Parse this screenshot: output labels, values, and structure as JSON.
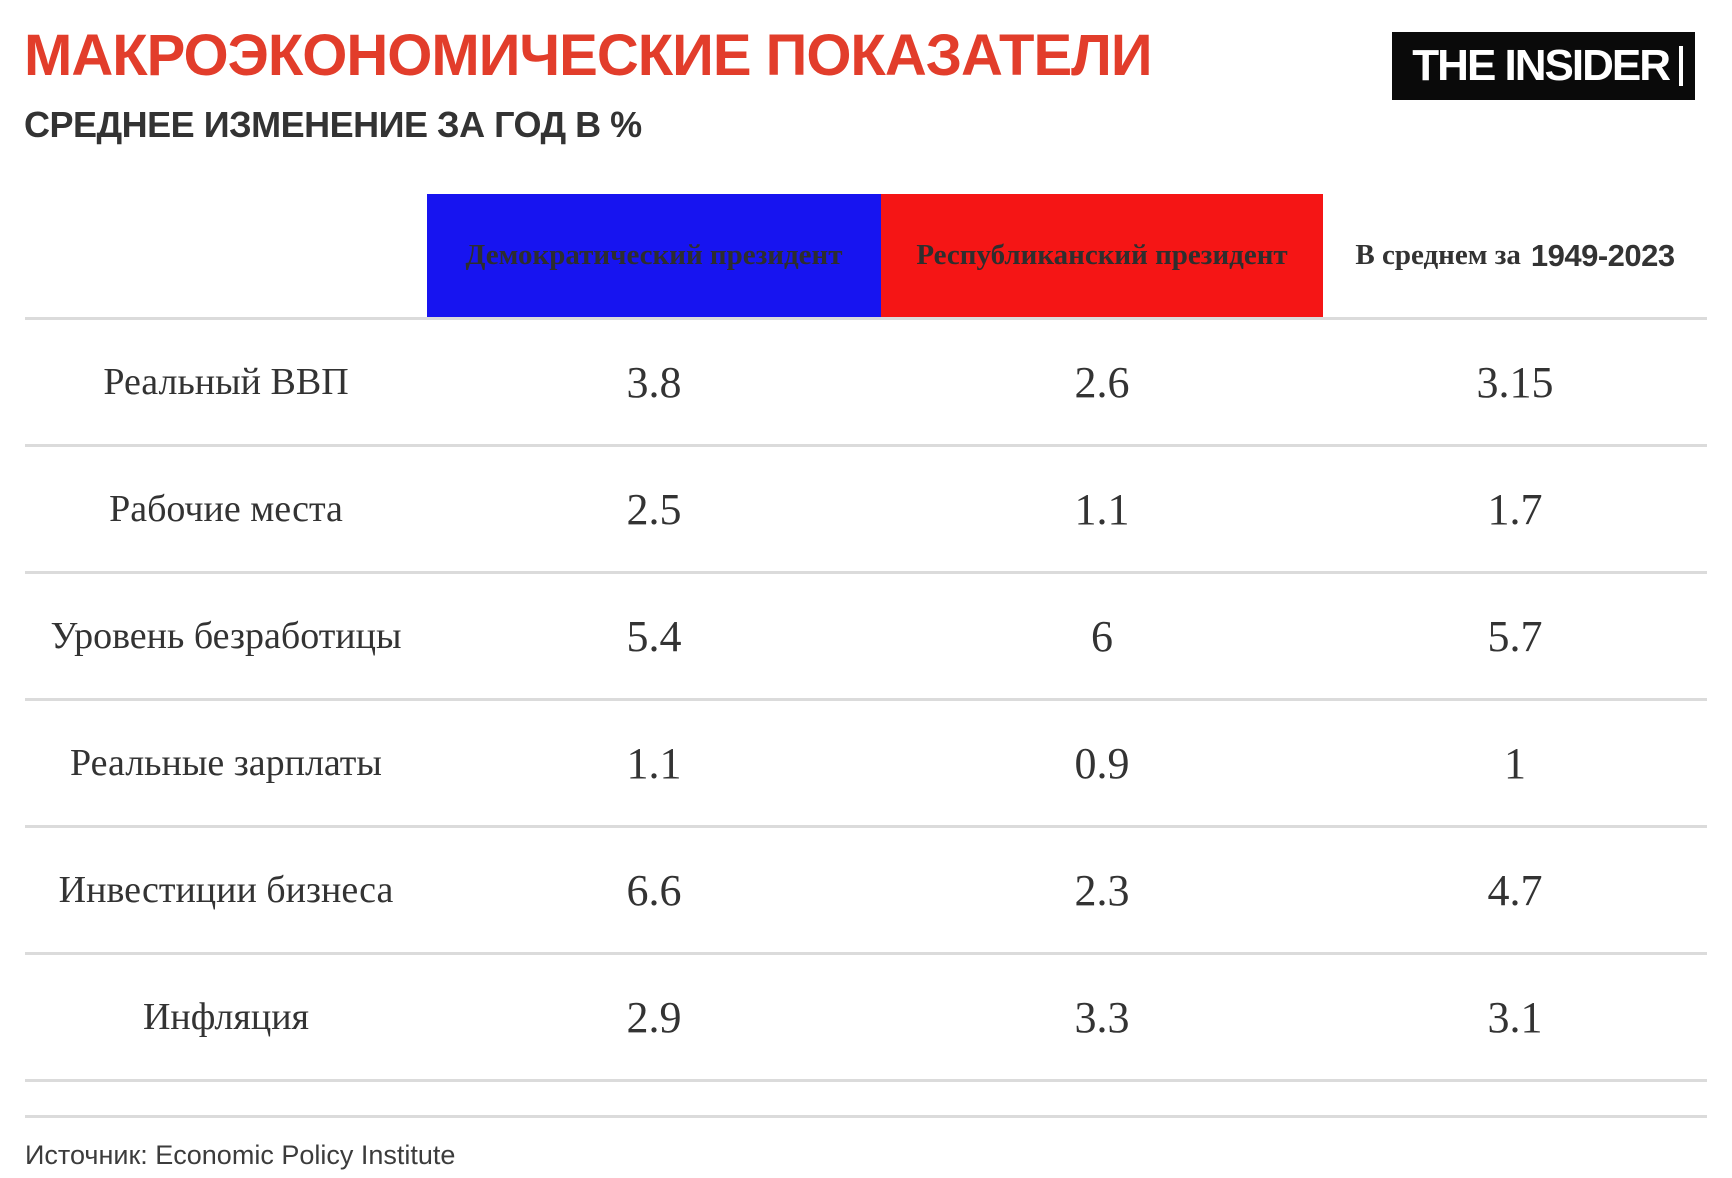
{
  "header": {
    "title": "МАКРОЭКОНОМИЧЕСКИЕ ПОКАЗАТЕЛИ",
    "subtitle": "СРЕДНЕЕ ИЗМЕНЕНИЕ ЗА ГОД В %",
    "logo_text": "THE INSIDER"
  },
  "colors": {
    "title": "#E23D2B",
    "democrat": "#1714F0",
    "republican": "#F51515",
    "divider": "#DBDBDB",
    "logo-bg": "#0A0A0A",
    "logo-text": "#FFFFFF",
    "body-text": "#333333",
    "source-text": "#3C3C3C"
  },
  "table": {
    "columns": {
      "democrat": "Демократический президент",
      "republican": "Республиканский президент",
      "average_prefix": "В среднем за",
      "average_years": "1949-2023"
    },
    "rows": [
      {
        "label": "Реальный ВВП",
        "democrat": "3.8",
        "republican": "2.6",
        "average": "3.15"
      },
      {
        "label": "Рабочие места",
        "democrat": "2.5",
        "republican": "1.1",
        "average": "1.7"
      },
      {
        "label": "Уровень безработицы",
        "democrat": "5.4",
        "republican": "6",
        "average": "5.7"
      },
      {
        "label": "Реальные зарплаты",
        "democrat": "1.1",
        "republican": "0.9",
        "average": "1"
      },
      {
        "label": "Инвестиции бизнеса",
        "democrat": "6.6",
        "republican": "2.3",
        "average": "4.7"
      },
      {
        "label": "Инфляция",
        "democrat": "2.9",
        "republican": "3.3",
        "average": "3.1"
      }
    ]
  },
  "footer": {
    "source": "Источник: Economic Policy Institute"
  },
  "chart_data": {
    "type": "table",
    "title": "МАКРОЭКОНОМИЧЕСКИЕ ПОКАЗАТЕЛИ",
    "subtitle": "СРЕДНЕЕ ИЗМЕНЕНИЕ ЗА ГОД В %",
    "units": "% average change per year",
    "columns": [
      "",
      "Демократический президент",
      "Республиканский президент",
      "В среднем за 1949-2023"
    ],
    "rows": [
      {
        "indicator": "Реальный ВВП",
        "democrat": 3.8,
        "republican": 2.6,
        "average_1949_2023": 3.15
      },
      {
        "indicator": "Рабочие места",
        "democrat": 2.5,
        "republican": 1.1,
        "average_1949_2023": 1.7
      },
      {
        "indicator": "Уровень безработицы",
        "democrat": 5.4,
        "republican": 6,
        "average_1949_2023": 5.7
      },
      {
        "indicator": "Реальные зарплаты",
        "democrat": 1.1,
        "republican": 0.9,
        "average_1949_2023": 1
      },
      {
        "indicator": "Инвестиции бизнеса",
        "democrat": 6.6,
        "republican": 2.3,
        "average_1949_2023": 4.7
      },
      {
        "indicator": "Инфляция",
        "democrat": 2.9,
        "republican": 3.3,
        "average_1949_2023": 3.1
      }
    ],
    "source": "Economic Policy Institute"
  }
}
